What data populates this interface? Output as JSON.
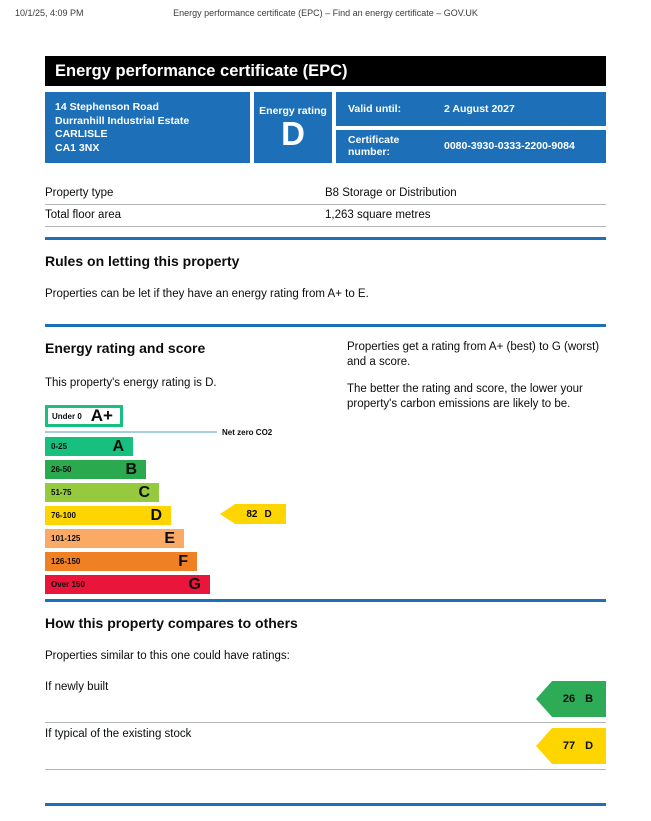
{
  "print_header": {
    "datetime": "10/1/25, 4:09 PM",
    "title": "Energy performance certificate (EPC) – Find an energy certificate – GOV.UK"
  },
  "banner": {
    "title": "Energy performance certificate (EPC)"
  },
  "summary": {
    "address_lines": [
      "14 Stephenson Road",
      "Durranhill Industrial Estate",
      "CARLISLE",
      "CA1 3NX"
    ],
    "energy_rating_label": "Energy rating",
    "energy_rating": "D",
    "valid_until_label": "Valid until:",
    "valid_until_value": "2 August 2027",
    "certificate_number_label": "Certificate number:",
    "certificate_number_value": "0080-3930-0333-2200-9084"
  },
  "property_details": {
    "rows": [
      {
        "label": "Property type",
        "value": "B8 Storage or Distribution"
      },
      {
        "label": "Total floor area",
        "value": "1,263 square metres"
      }
    ]
  },
  "rules_section": {
    "heading": "Rules on letting this property",
    "body": "Properties can be let if they have an energy rating from A+ to E."
  },
  "rating_section": {
    "heading": "Energy rating and score",
    "intro": "This property's energy rating is D.",
    "explanation_1": "Properties get a rating from A+ (best) to G (worst) and a score.",
    "explanation_2": "The better the rating and score, the lower your property's carbon emissions are likely to be."
  },
  "chart_data": {
    "type": "epc-rating-scale",
    "net_zero_label": "Net zero CO2",
    "net_zero_line_color": "#a6cee2",
    "bands": [
      {
        "rating": "A+",
        "range": "Under 0",
        "color": "#ffffff",
        "border": "#17c07e"
      },
      {
        "rating": "A",
        "range": "0-25",
        "color": "#17c07e"
      },
      {
        "rating": "B",
        "range": "26-50",
        "color": "#2aa94e"
      },
      {
        "rating": "C",
        "range": "51-75",
        "color": "#95ca3e"
      },
      {
        "rating": "D",
        "range": "76-100",
        "color": "#ffd500"
      },
      {
        "rating": "E",
        "range": "101-125",
        "color": "#fbaa65"
      },
      {
        "rating": "F",
        "range": "126-150",
        "color": "#ef8023"
      },
      {
        "rating": "G",
        "range": "Over 150",
        "color": "#e9153b"
      }
    ],
    "current": {
      "score": 82,
      "rating": "D",
      "color": "#ffd500"
    }
  },
  "compare_section": {
    "heading": "How this property compares to others",
    "intro": "Properties similar to this one could have ratings:",
    "rows": [
      {
        "label": "If newly built",
        "score": 26,
        "rating": "B",
        "color": "#2eab57"
      },
      {
        "label": "If typical of the existing stock",
        "score": 77,
        "rating": "D",
        "color": "#ffd500"
      }
    ]
  },
  "colors": {
    "govuk_blue": "#1d70b8",
    "banner_black": "#000000"
  }
}
